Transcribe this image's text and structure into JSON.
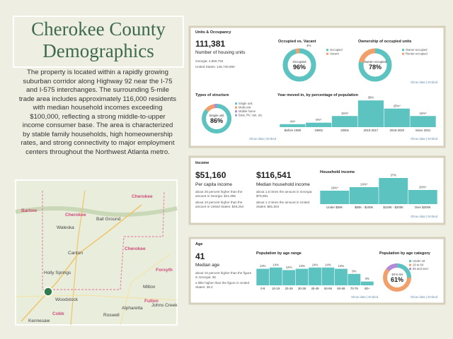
{
  "title": "Cherokee County Demographics",
  "description": "The property is located within a rapidly growing suburban corridor along Highway 92 near the I-75 and I-575 interchanges. The surrounding 5-mile trade area includes approximately 116,000 residents with median household incomes exceeding $100,000, reflecting a strong middle-to-upper income consumer base. The area is characterized by stable family households, high homeownership rates, and strong connectivity to major employment centers throughout the Northwest Atlanta metro.",
  "map": {
    "labels": [
      "Bartow",
      "Cherokee",
      "Cherokee",
      "Ball Ground",
      "Waleska",
      "Canton",
      "Cherokee",
      "Forsyth",
      "Holly Springs",
      "Woodstock",
      "Milton",
      "Alpharetta",
      "Roswell",
      "Kennesaw",
      "Cobb",
      "Fulton",
      "Johns Creek"
    ]
  },
  "units": {
    "heading": "Units & Occupancy",
    "value": "111,381",
    "value_caption": "Number of housing units",
    "comparisons": [
      "Georgia: 4,660,794",
      "United States: 146,740,960"
    ],
    "occupancy": {
      "type": "donut",
      "title": "Occupied vs. Vacant",
      "categories": [
        "Occupied",
        "Vacant"
      ],
      "values": [
        96,
        4
      ],
      "value_labels": [
        "96%",
        "4%"
      ],
      "colors": [
        "#5cc3c1",
        "#f2a06b"
      ],
      "center_label": "Occupied"
    },
    "ownership": {
      "type": "donut",
      "title": "Ownership of occupied units",
      "categories": [
        "Owner-occupied",
        "Renter-occupied"
      ],
      "values": [
        78,
        22
      ],
      "value_labels": [
        "78%",
        null
      ],
      "colors": [
        "#5cc3c1",
        "#f2a06b"
      ],
      "center_label": "Owner-occupied"
    },
    "structure": {
      "type": "donut",
      "title": "Types of structure",
      "categories": [
        "Single unit",
        "Multi-unit",
        "Mobile home",
        "Boat, RV, van, etc."
      ],
      "values": [
        86,
        11,
        3,
        0
      ],
      "value_labels": [
        "86%",
        null,
        null,
        null
      ],
      "colors": [
        "#5cc3c1",
        "#f2a06b",
        "#b48ad6",
        "#9aa9c9"
      ],
      "center_label": "Single unit"
    },
    "moved_in": {
      "type": "bar",
      "title": "Year moved in, by percentage of population",
      "categories": [
        "Before 1990",
        "1990s",
        "2000s",
        "2010-2017",
        "2018-2020",
        "Since 2021"
      ],
      "values": [
        4,
        6,
        15,
        36,
        25,
        15
      ],
      "value_labels": [
        "4%*",
        "6%*",
        "15%*",
        "36%",
        "25%*",
        "15%*"
      ],
      "color": "#5cc3c1"
    },
    "links": [
      "Show data | Embed",
      "Show data | Embed",
      "Show data | Embed"
    ]
  },
  "income": {
    "heading": "Income",
    "per_capita": {
      "value": "$51,160",
      "caption": "Per capita income",
      "comparisons": [
        "about 25 percent higher than the amount in Georgia: $41,996",
        "about 10 percent higher than the amount in United States: $45,254"
      ]
    },
    "median": {
      "value": "$116,541",
      "caption": "Median household income",
      "comparisons": [
        "about 1.5 times the amount in Georgia: $79,991",
        "about 1.4 times the amount in United States: $81,604"
      ]
    },
    "household": {
      "type": "bar",
      "title": "Household income",
      "categories": [
        "Under $50K",
        "$50K - $100K",
        "$100K - $200K",
        "Over $200K"
      ],
      "values": [
        19,
        24,
        37,
        20
      ],
      "value_labels": [
        "19%*",
        "24%*",
        "37%",
        "20%*"
      ],
      "color": "#5cc3c1"
    },
    "links": [
      "Show data | Embed"
    ]
  },
  "age": {
    "heading": "Age",
    "value": "41",
    "caption": "Median age",
    "comparisons": [
      "about 10 percent higher than the figure in Georgia: 38",
      "a little higher than the figure in United States: 39.2"
    ],
    "range": {
      "type": "bar",
      "title": "Population by age range",
      "categories": [
        "0-9",
        "10-19",
        "20-29",
        "30-39",
        "40-49",
        "50-59",
        "60-69",
        "70-79",
        "80+"
      ],
      "values": [
        13,
        14,
        12,
        13,
        14,
        14,
        13,
        9,
        3
      ],
      "value_labels": [
        "13%",
        "14%",
        "12%",
        "13%",
        "14%",
        "14%",
        "13%",
        "9%",
        "3%"
      ],
      "color": "#5cc3c1"
    },
    "category": {
      "type": "donut",
      "title": "Population by age category",
      "categories": [
        "Under 18",
        "18 to 64",
        "65 and over"
      ],
      "values": [
        25,
        61,
        14
      ],
      "value_labels": [
        null,
        "61%",
        null
      ],
      "colors": [
        "#5cc3c1",
        "#f2a06b",
        "#b48ad6"
      ],
      "center_label": "18 to 64"
    },
    "links": [
      "Show data | Embed",
      "Show data | Embed"
    ]
  }
}
